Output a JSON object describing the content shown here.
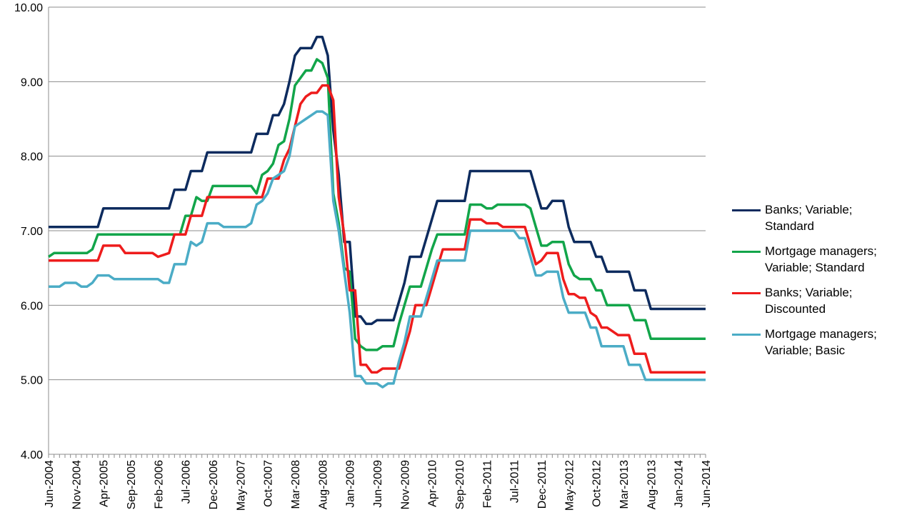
{
  "chart_data": {
    "type": "line",
    "ylim": [
      4.0,
      10.0
    ],
    "yticks": [
      "4.00",
      "5.00",
      "6.00",
      "7.00",
      "8.00",
      "9.00",
      "10.00"
    ],
    "xticks": [
      "Jun-2004",
      "Nov-2004",
      "Apr-2005",
      "Sep-2005",
      "Feb-2006",
      "Jul-2006",
      "Dec-2006",
      "May-2007",
      "Oct-2007",
      "Mar-2008",
      "Aug-2008",
      "Jan-2009",
      "Jun-2009",
      "Nov-2009",
      "Apr-2010",
      "Sep-2010",
      "Feb-2011",
      "Jul-2011",
      "Dec-2011",
      "May-2012",
      "Oct-2012",
      "Mar-2013",
      "Aug-2013",
      "Jan-2014",
      "Jun-2014"
    ],
    "x_start": "Jun-2004",
    "x_end": "Jun-2014",
    "grid": "horizontal",
    "legend_position": "right",
    "series": [
      {
        "name": "Banks; Variable; Standard",
        "color": "#0d2b5e",
        "points": [
          [
            "Jun-2004",
            7.05
          ],
          [
            "Dec-2004",
            7.05
          ],
          [
            "Mar-2005",
            7.05
          ],
          [
            "Apr-2005",
            7.3
          ],
          [
            "Jan-2006",
            7.3
          ],
          [
            "Apr-2006",
            7.3
          ],
          [
            "May-2006",
            7.55
          ],
          [
            "Jul-2006",
            7.55
          ],
          [
            "Aug-2006",
            7.8
          ],
          [
            "Oct-2006",
            7.8
          ],
          [
            "Nov-2006",
            8.05
          ],
          [
            "Jun-2007",
            8.05
          ],
          [
            "Jul-2007",
            8.05
          ],
          [
            "Aug-2007",
            8.3
          ],
          [
            "Sep-2007",
            8.3
          ],
          [
            "Oct-2007",
            8.3
          ],
          [
            "Nov-2007",
            8.55
          ],
          [
            "Dec-2007",
            8.55
          ],
          [
            "Jan-2008",
            8.7
          ],
          [
            "Feb-2008",
            9.0
          ],
          [
            "Mar-2008",
            9.35
          ],
          [
            "Apr-2008",
            9.45
          ],
          [
            "Jun-2008",
            9.45
          ],
          [
            "Jul-2008",
            9.6
          ],
          [
            "Aug-2008",
            9.6
          ],
          [
            "Sep-2008",
            9.35
          ],
          [
            "Oct-2008",
            8.35
          ],
          [
            "Nov-2008",
            7.75
          ],
          [
            "Dec-2008",
            6.85
          ],
          [
            "Jan-2009",
            6.85
          ],
          [
            "Feb-2009",
            5.85
          ],
          [
            "Mar-2009",
            5.85
          ],
          [
            "Apr-2009",
            5.75
          ],
          [
            "May-2009",
            5.75
          ],
          [
            "Jun-2009",
            5.8
          ],
          [
            "Sep-2009",
            5.8
          ],
          [
            "Oct-2009",
            6.05
          ],
          [
            "Nov-2009",
            6.3
          ],
          [
            "Dec-2009",
            6.65
          ],
          [
            "Feb-2010",
            6.65
          ],
          [
            "Mar-2010",
            6.9
          ],
          [
            "Apr-2010",
            7.15
          ],
          [
            "May-2010",
            7.4
          ],
          [
            "Oct-2010",
            7.4
          ],
          [
            "Nov-2010",
            7.8
          ],
          [
            "Jul-2011",
            7.8
          ],
          [
            "Oct-2011",
            7.8
          ],
          [
            "Nov-2011",
            7.55
          ],
          [
            "Dec-2011",
            7.3
          ],
          [
            "Jan-2012",
            7.3
          ],
          [
            "Feb-2012",
            7.4
          ],
          [
            "Apr-2012",
            7.4
          ],
          [
            "May-2012",
            7.05
          ],
          [
            "Jun-2012",
            6.85
          ],
          [
            "Sep-2012",
            6.85
          ],
          [
            "Oct-2012",
            6.65
          ],
          [
            "Nov-2012",
            6.65
          ],
          [
            "Dec-2012",
            6.45
          ],
          [
            "Apr-2013",
            6.45
          ],
          [
            "May-2013",
            6.2
          ],
          [
            "Jul-2013",
            6.2
          ],
          [
            "Aug-2013",
            5.95
          ],
          [
            "Jun-2014",
            5.95
          ]
        ]
      },
      {
        "name": "Mortgage managers; Variable; Standard",
        "color": "#12a54a",
        "points": [
          [
            "Jun-2004",
            6.65
          ],
          [
            "Jul-2004",
            6.7
          ],
          [
            "Jan-2005",
            6.7
          ],
          [
            "Feb-2005",
            6.75
          ],
          [
            "Mar-2005",
            6.95
          ],
          [
            "Jun-2006",
            6.95
          ],
          [
            "Jul-2006",
            7.2
          ],
          [
            "Aug-2006",
            7.2
          ],
          [
            "Sep-2006",
            7.45
          ],
          [
            "Oct-2006",
            7.4
          ],
          [
            "Nov-2006",
            7.4
          ],
          [
            "Dec-2006",
            7.6
          ],
          [
            "Jul-2007",
            7.6
          ],
          [
            "Aug-2007",
            7.5
          ],
          [
            "Sep-2007",
            7.75
          ],
          [
            "Oct-2007",
            7.8
          ],
          [
            "Nov-2007",
            7.9
          ],
          [
            "Dec-2007",
            8.15
          ],
          [
            "Jan-2008",
            8.2
          ],
          [
            "Feb-2008",
            8.5
          ],
          [
            "Mar-2008",
            8.95
          ],
          [
            "Apr-2008",
            9.05
          ],
          [
            "May-2008",
            9.15
          ],
          [
            "Jun-2008",
            9.15
          ],
          [
            "Jul-2008",
            9.3
          ],
          [
            "Aug-2008",
            9.25
          ],
          [
            "Sep-2008",
            9.05
          ],
          [
            "Oct-2008",
            7.5
          ],
          [
            "Nov-2008",
            7.1
          ],
          [
            "Dec-2008",
            6.5
          ],
          [
            "Jan-2009",
            6.45
          ],
          [
            "Feb-2009",
            5.55
          ],
          [
            "Mar-2009",
            5.45
          ],
          [
            "Apr-2009",
            5.4
          ],
          [
            "Jun-2009",
            5.4
          ],
          [
            "Jul-2009",
            5.45
          ],
          [
            "Sep-2009",
            5.45
          ],
          [
            "Oct-2009",
            5.75
          ],
          [
            "Nov-2009",
            6.0
          ],
          [
            "Dec-2009",
            6.25
          ],
          [
            "Feb-2010",
            6.25
          ],
          [
            "Mar-2010",
            6.5
          ],
          [
            "Apr-2010",
            6.75
          ],
          [
            "May-2010",
            6.95
          ],
          [
            "Oct-2010",
            6.95
          ],
          [
            "Nov-2010",
            7.35
          ],
          [
            "Jan-2011",
            7.35
          ],
          [
            "Feb-2011",
            7.3
          ],
          [
            "Mar-2011",
            7.3
          ],
          [
            "Apr-2011",
            7.35
          ],
          [
            "Sep-2011",
            7.35
          ],
          [
            "Oct-2011",
            7.3
          ],
          [
            "Nov-2011",
            7.05
          ],
          [
            "Dec-2011",
            6.8
          ],
          [
            "Jan-2012",
            6.8
          ],
          [
            "Feb-2012",
            6.85
          ],
          [
            "Apr-2012",
            6.85
          ],
          [
            "May-2012",
            6.55
          ],
          [
            "Jun-2012",
            6.4
          ],
          [
            "Jul-2012",
            6.35
          ],
          [
            "Sep-2012",
            6.35
          ],
          [
            "Oct-2012",
            6.2
          ],
          [
            "Nov-2012",
            6.2
          ],
          [
            "Dec-2012",
            6.0
          ],
          [
            "Apr-2013",
            6.0
          ],
          [
            "May-2013",
            5.8
          ],
          [
            "Jul-2013",
            5.8
          ],
          [
            "Aug-2013",
            5.55
          ],
          [
            "Jun-2014",
            5.55
          ]
        ]
      },
      {
        "name": "Banks; Variable; Discounted",
        "color": "#ee1c1c",
        "points": [
          [
            "Jun-2004",
            6.6
          ],
          [
            "Mar-2005",
            6.6
          ],
          [
            "Apr-2005",
            6.8
          ],
          [
            "Jul-2005",
            6.8
          ],
          [
            "Aug-2005",
            6.7
          ],
          [
            "Jan-2006",
            6.7
          ],
          [
            "Feb-2006",
            6.65
          ],
          [
            "Apr-2006",
            6.7
          ],
          [
            "May-2006",
            6.95
          ],
          [
            "Jul-2006",
            6.95
          ],
          [
            "Aug-2006",
            7.2
          ],
          [
            "Oct-2006",
            7.2
          ],
          [
            "Nov-2006",
            7.45
          ],
          [
            "Sep-2007",
            7.45
          ],
          [
            "Oct-2007",
            7.7
          ],
          [
            "Dec-2007",
            7.7
          ],
          [
            "Jan-2008",
            7.95
          ],
          [
            "Feb-2008",
            8.1
          ],
          [
            "Mar-2008",
            8.4
          ],
          [
            "Apr-2008",
            8.7
          ],
          [
            "May-2008",
            8.8
          ],
          [
            "Jun-2008",
            8.85
          ],
          [
            "Jul-2008",
            8.85
          ],
          [
            "Aug-2008",
            8.95
          ],
          [
            "Sep-2008",
            8.95
          ],
          [
            "Oct-2008",
            8.75
          ],
          [
            "Nov-2008",
            7.45
          ],
          [
            "Dec-2008",
            6.95
          ],
          [
            "Jan-2009",
            6.2
          ],
          [
            "Feb-2009",
            6.2
          ],
          [
            "Mar-2009",
            5.2
          ],
          [
            "Apr-2009",
            5.2
          ],
          [
            "May-2009",
            5.1
          ],
          [
            "Jun-2009",
            5.1
          ],
          [
            "Jul-2009",
            5.15
          ],
          [
            "Oct-2009",
            5.15
          ],
          [
            "Nov-2009",
            5.4
          ],
          [
            "Dec-2009",
            5.65
          ],
          [
            "Jan-2010",
            6.0
          ],
          [
            "Mar-2010",
            6.0
          ],
          [
            "Apr-2010",
            6.25
          ],
          [
            "May-2010",
            6.5
          ],
          [
            "Jun-2010",
            6.75
          ],
          [
            "Oct-2010",
            6.75
          ],
          [
            "Nov-2010",
            7.15
          ],
          [
            "Jan-2011",
            7.15
          ],
          [
            "Feb-2011",
            7.1
          ],
          [
            "Apr-2011",
            7.1
          ],
          [
            "May-2011",
            7.05
          ],
          [
            "Sep-2011",
            7.05
          ],
          [
            "Oct-2011",
            6.8
          ],
          [
            "Nov-2011",
            6.55
          ],
          [
            "Dec-2011",
            6.6
          ],
          [
            "Jan-2012",
            6.7
          ],
          [
            "Feb-2012",
            6.7
          ],
          [
            "Mar-2012",
            6.7
          ],
          [
            "Apr-2012",
            6.35
          ],
          [
            "May-2012",
            6.15
          ],
          [
            "Jun-2012",
            6.15
          ],
          [
            "Jul-2012",
            6.1
          ],
          [
            "Aug-2012",
            6.1
          ],
          [
            "Sep-2012",
            5.9
          ],
          [
            "Oct-2012",
            5.85
          ],
          [
            "Nov-2012",
            5.7
          ],
          [
            "Dec-2012",
            5.7
          ],
          [
            "Jan-2013",
            5.65
          ],
          [
            "Feb-2013",
            5.6
          ],
          [
            "Apr-2013",
            5.6
          ],
          [
            "May-2013",
            5.35
          ],
          [
            "Jul-2013",
            5.35
          ],
          [
            "Aug-2013",
            5.1
          ],
          [
            "Jun-2014",
            5.1
          ]
        ]
      },
      {
        "name": "Mortgage managers; Variable; Basic",
        "color": "#4bacc6",
        "points": [
          [
            "Jun-2004",
            6.25
          ],
          [
            "Aug-2004",
            6.25
          ],
          [
            "Sep-2004",
            6.3
          ],
          [
            "Nov-2004",
            6.3
          ],
          [
            "Dec-2004",
            6.25
          ],
          [
            "Jan-2005",
            6.25
          ],
          [
            "Feb-2005",
            6.3
          ],
          [
            "Mar-2005",
            6.4
          ],
          [
            "May-2005",
            6.4
          ],
          [
            "Jun-2005",
            6.35
          ],
          [
            "Jan-2006",
            6.35
          ],
          [
            "Feb-2006",
            6.35
          ],
          [
            "Mar-2006",
            6.3
          ],
          [
            "Apr-2006",
            6.3
          ],
          [
            "May-2006",
            6.55
          ],
          [
            "Jul-2006",
            6.55
          ],
          [
            "Aug-2006",
            6.85
          ],
          [
            "Sep-2006",
            6.8
          ],
          [
            "Oct-2006",
            6.85
          ],
          [
            "Nov-2006",
            7.1
          ],
          [
            "Dec-2006",
            7.1
          ],
          [
            "Jan-2007",
            7.1
          ],
          [
            "Feb-2007",
            7.05
          ],
          [
            "Jun-2007",
            7.05
          ],
          [
            "Jul-2007",
            7.1
          ],
          [
            "Aug-2007",
            7.35
          ],
          [
            "Sep-2007",
            7.4
          ],
          [
            "Oct-2007",
            7.5
          ],
          [
            "Nov-2007",
            7.7
          ],
          [
            "Dec-2007",
            7.75
          ],
          [
            "Jan-2008",
            7.8
          ],
          [
            "Feb-2008",
            8.0
          ],
          [
            "Mar-2008",
            8.4
          ],
          [
            "Apr-2008",
            8.45
          ],
          [
            "May-2008",
            8.5
          ],
          [
            "Jun-2008",
            8.55
          ],
          [
            "Jul-2008",
            8.6
          ],
          [
            "Aug-2008",
            8.6
          ],
          [
            "Sep-2008",
            8.55
          ],
          [
            "Oct-2008",
            7.4
          ],
          [
            "Nov-2008",
            7.0
          ],
          [
            "Dec-2008",
            6.45
          ],
          [
            "Jan-2009",
            5.9
          ],
          [
            "Feb-2009",
            5.05
          ],
          [
            "Mar-2009",
            5.05
          ],
          [
            "Apr-2009",
            4.95
          ],
          [
            "May-2009",
            4.95
          ],
          [
            "Jun-2009",
            4.95
          ],
          [
            "Jul-2009",
            4.9
          ],
          [
            "Aug-2009",
            4.95
          ],
          [
            "Sep-2009",
            4.95
          ],
          [
            "Oct-2009",
            5.25
          ],
          [
            "Nov-2009",
            5.5
          ],
          [
            "Dec-2009",
            5.85
          ],
          [
            "Feb-2010",
            5.85
          ],
          [
            "Mar-2010",
            6.1
          ],
          [
            "Apr-2010",
            6.35
          ],
          [
            "May-2010",
            6.6
          ],
          [
            "Oct-2010",
            6.6
          ],
          [
            "Nov-2010",
            7.0
          ],
          [
            "Jul-2011",
            7.0
          ],
          [
            "Aug-2011",
            6.9
          ],
          [
            "Sep-2011",
            6.9
          ],
          [
            "Oct-2011",
            6.65
          ],
          [
            "Nov-2011",
            6.4
          ],
          [
            "Dec-2011",
            6.4
          ],
          [
            "Jan-2012",
            6.45
          ],
          [
            "Mar-2012",
            6.45
          ],
          [
            "Apr-2012",
            6.1
          ],
          [
            "May-2012",
            5.9
          ],
          [
            "Aug-2012",
            5.9
          ],
          [
            "Sep-2012",
            5.7
          ],
          [
            "Oct-2012",
            5.7
          ],
          [
            "Nov-2012",
            5.45
          ],
          [
            "Mar-2013",
            5.45
          ],
          [
            "Apr-2013",
            5.2
          ],
          [
            "Jun-2013",
            5.2
          ],
          [
            "Jul-2013",
            5.0
          ],
          [
            "Jun-2014",
            5.0
          ]
        ]
      }
    ]
  }
}
